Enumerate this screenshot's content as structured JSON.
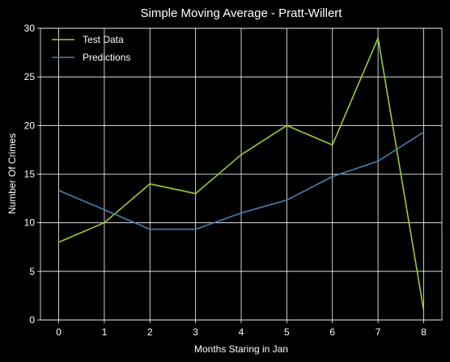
{
  "chart_data": {
    "type": "line",
    "title": "Simple Moving Average - Pratt-Willert",
    "xlabel": "Months Staring in Jan",
    "ylabel": "Number Of Crimes",
    "x": [
      0,
      1,
      2,
      3,
      4,
      5,
      6,
      7,
      8
    ],
    "xlim": [
      -0.4,
      8.4
    ],
    "ylim": [
      0,
      30
    ],
    "xticks": [
      "0",
      "1",
      "2",
      "3",
      "4",
      "5",
      "6",
      "7",
      "8"
    ],
    "yticks": [
      "0",
      "5",
      "10",
      "15",
      "20",
      "25",
      "30"
    ],
    "grid": true,
    "legend_position": "top-left",
    "series": [
      {
        "name": "Test Data",
        "color": "#9acd32",
        "values": [
          8,
          10,
          14,
          13,
          17,
          20,
          18,
          29,
          1
        ]
      },
      {
        "name": "Predictions",
        "color": "#4682b4",
        "values": [
          13.33,
          11.33,
          9.33,
          9.33,
          11.0,
          12.33,
          14.75,
          16.33,
          19.33
        ]
      }
    ],
    "colors": {
      "background": "#000000",
      "foreground": "#ffffff",
      "grid": "#ffffff"
    }
  }
}
